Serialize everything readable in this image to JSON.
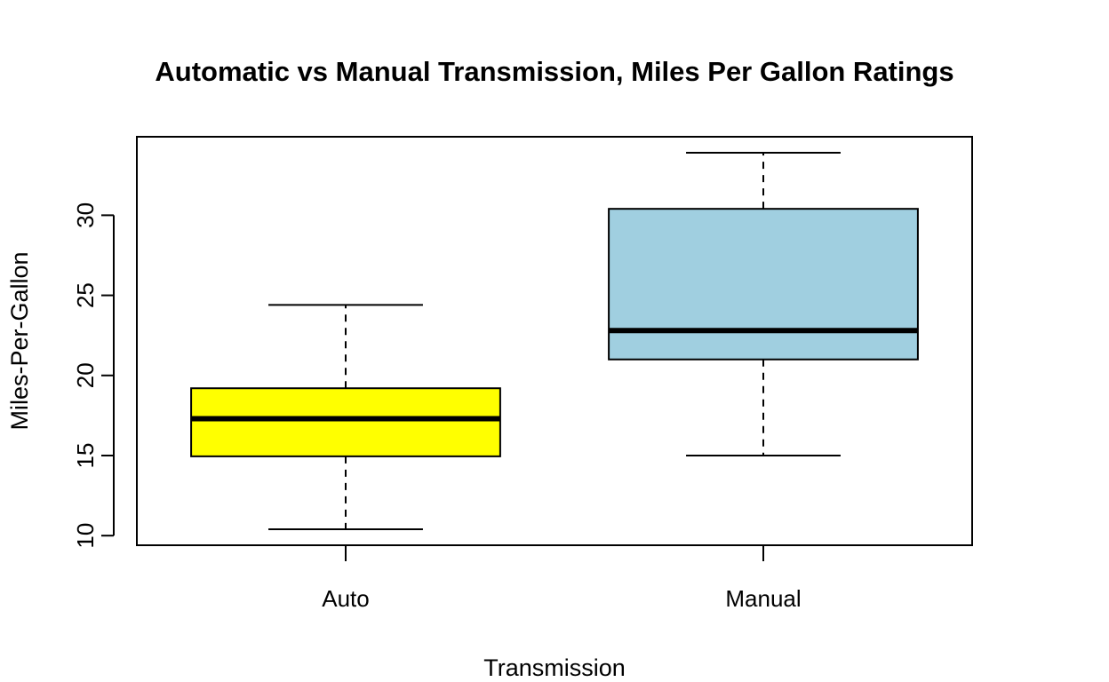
{
  "chart_data": {
    "type": "boxplot",
    "title": "Automatic vs Manual Transmission, Miles Per Gallon Ratings",
    "xlabel": "Transmission",
    "ylabel": "Miles-Per-Gallon",
    "ylim": [
      9.4,
      34.9
    ],
    "yticks": [
      10,
      15,
      20,
      25,
      30
    ],
    "grid": false,
    "series": [
      {
        "name": "Auto",
        "color": "#ffff00",
        "min": 10.4,
        "q1": 14.95,
        "median": 17.3,
        "q3": 19.2,
        "max": 24.4
      },
      {
        "name": "Manual",
        "color": "#a0cfe0",
        "min": 15.0,
        "q1": 21.0,
        "median": 22.8,
        "q3": 30.4,
        "max": 33.9
      }
    ]
  }
}
